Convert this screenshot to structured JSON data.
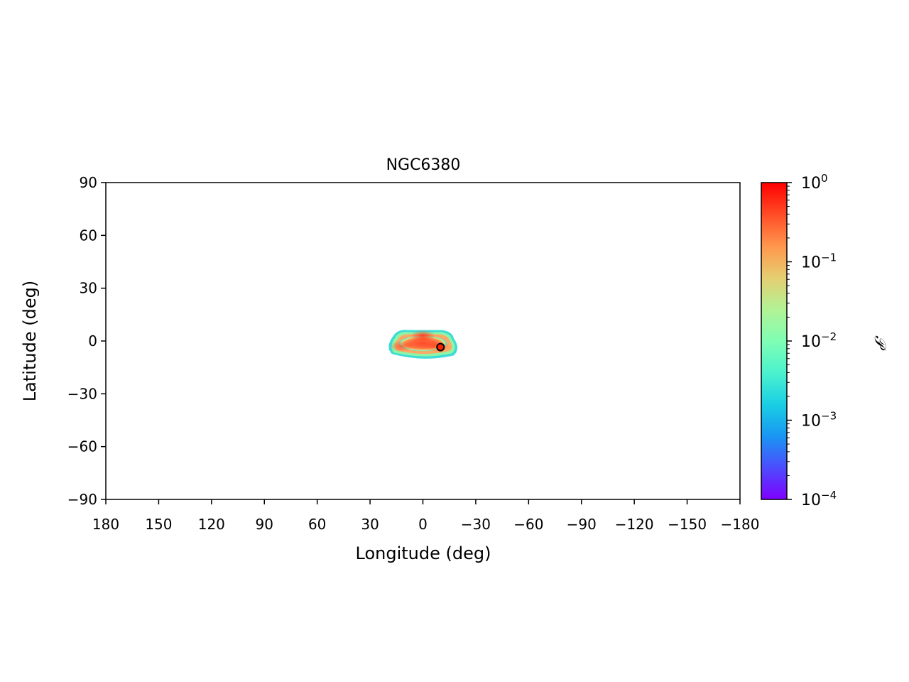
{
  "chart_data": {
    "type": "heatmap",
    "title": "NGC6380",
    "xlabel": "Longitude (deg)",
    "ylabel": "Latitude (deg)",
    "xlim": [
      180,
      -180
    ],
    "ylim": [
      -90,
      90
    ],
    "xticks": [
      180,
      150,
      120,
      90,
      60,
      30,
      0,
      -30,
      -60,
      -90,
      -120,
      -150,
      -180
    ],
    "xtick_labels": [
      "180",
      "150",
      "120",
      "90",
      "60",
      "30",
      "0",
      "−30",
      "−60",
      "−90",
      "−120",
      "−150",
      "−180"
    ],
    "yticks": [
      90,
      60,
      30,
      0,
      -30,
      -60,
      -90
    ],
    "ytick_labels": [
      "90",
      "60",
      "30",
      "0",
      "−30",
      "−60",
      "−90"
    ],
    "colorbar": {
      "label": "𝒫",
      "scale": "log",
      "range": [
        0.0001,
        1
      ],
      "ticks": [
        {
          "value": 1,
          "base": "10",
          "exp": "0"
        },
        {
          "value": 0.1,
          "base": "10",
          "exp": "−1"
        },
        {
          "value": 0.01,
          "base": "10",
          "exp": "−2"
        },
        {
          "value": 0.001,
          "base": "10",
          "exp": "−3"
        },
        {
          "value": 0.0001,
          "base": "10",
          "exp": "−4"
        }
      ],
      "colormap": "rainbow",
      "colors": [
        "#7f00ff",
        "#4c4cfd",
        "#1996f3",
        "#19cfe3",
        "#4cf2ce",
        "#7ffeb3",
        "#b2f295",
        "#e6ce71",
        "#ff964c",
        "#ff4c26",
        "#ff0000"
      ]
    },
    "probability_region": {
      "lon_range": [
        20,
        -20
      ],
      "lat_range": [
        -9,
        7
      ],
      "peak_probability": 1,
      "hotspots": [
        {
          "lon": 0,
          "lat": 3,
          "probability": 0.9
        },
        {
          "lon": 12,
          "lat": -3,
          "probability": 0.6
        },
        {
          "lon": -8,
          "lat": -3,
          "probability": 0.5
        }
      ]
    },
    "marker": {
      "lon": -10,
      "lat": -3.5,
      "color": "#ff2000"
    }
  }
}
